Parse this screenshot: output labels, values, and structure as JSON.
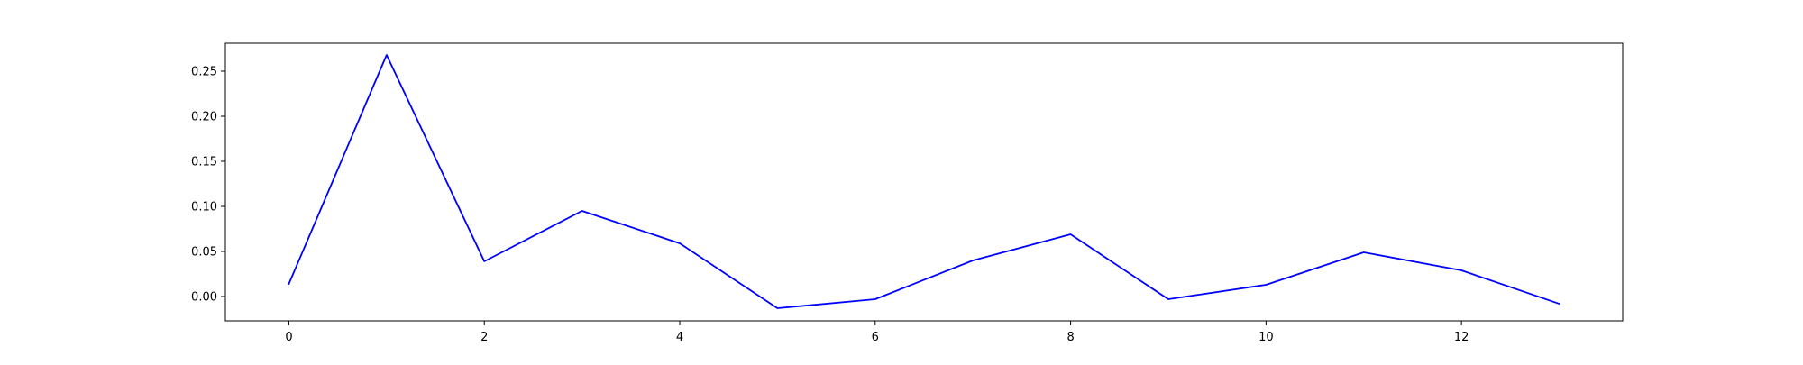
{
  "chart_data": {
    "type": "line",
    "title": "",
    "xlabel": "",
    "ylabel": "",
    "xlim": [
      -0.65,
      13.65
    ],
    "ylim": [
      -0.027,
      0.281
    ],
    "grid": false,
    "x_ticks": [
      0,
      2,
      4,
      6,
      8,
      10,
      12
    ],
    "x_tick_labels": [
      "0",
      "2",
      "4",
      "6",
      "8",
      "10",
      "12"
    ],
    "y_ticks": [
      0.0,
      0.05,
      0.1,
      0.15,
      0.2,
      0.25
    ],
    "y_tick_labels": [
      "0.00",
      "0.05",
      "0.10",
      "0.15",
      "0.20",
      "0.25"
    ],
    "series": [
      {
        "color": "#0000ff",
        "x": [
          0,
          1,
          2,
          3,
          4,
          5,
          6,
          7,
          8,
          9,
          10,
          11,
          12,
          13
        ],
        "values": [
          0.014,
          0.268,
          0.039,
          0.095,
          0.059,
          -0.013,
          -0.003,
          0.04,
          0.069,
          -0.003,
          0.013,
          0.049,
          0.029,
          -0.008
        ]
      }
    ]
  }
}
